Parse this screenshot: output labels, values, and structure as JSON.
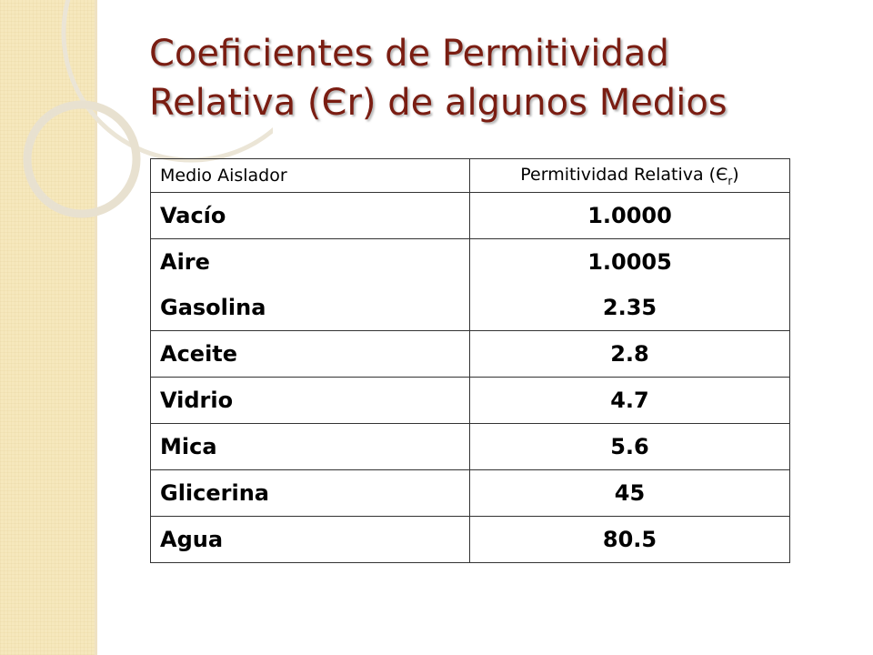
{
  "title": {
    "line1": "Coeficientes de Permitividad",
    "line2": "Relativa (Єr) de algunos Medios"
  },
  "table": {
    "headers": {
      "medium": "Medio Aislador",
      "permittivity_prefix": "Permitividad Relativa (Є",
      "permittivity_sub": "r",
      "permittivity_suffix": ")"
    },
    "rows": [
      {
        "medium": "Vacío",
        "value": "1.0000"
      },
      {
        "medium": "Aire",
        "value": "1.0005"
      },
      {
        "medium": "Gasolina",
        "value": "2.35"
      },
      {
        "medium": "Aceite",
        "value": "2.8"
      },
      {
        "medium": "Vidrio",
        "value": "4.7"
      },
      {
        "medium": "Mica",
        "value": "5.6"
      },
      {
        "medium": "Glicerina",
        "value": "45"
      },
      {
        "medium": "Agua",
        "value": "80.5"
      }
    ]
  },
  "colors": {
    "title": "#7a1d12",
    "side_band": "#f6e8bd",
    "ring": "#ece6d8"
  }
}
